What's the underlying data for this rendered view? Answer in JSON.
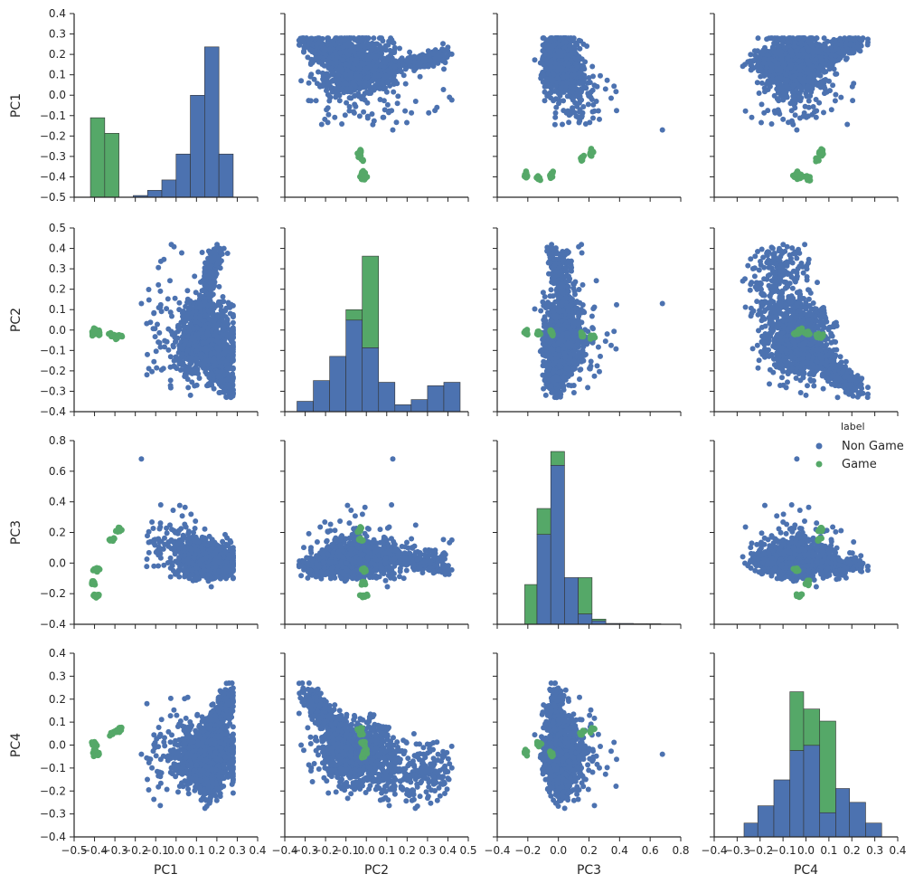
{
  "chart_data": {
    "type": "scatter",
    "kind": "pairplot",
    "variables": [
      "PC1",
      "PC2",
      "PC3",
      "PC4"
    ],
    "hue": "label",
    "legend": {
      "title": "label",
      "placement": "right",
      "entries": [
        {
          "name": "Non Game",
          "color": "#4c72b0"
        },
        {
          "name": "Game",
          "color": "#55a868"
        }
      ]
    },
    "axes": {
      "PC1": {
        "label": "PC1",
        "lim": [
          -0.5,
          0.4
        ],
        "ticks": [
          -0.5,
          -0.4,
          -0.3,
          -0.2,
          -0.1,
          0.0,
          0.1,
          0.2,
          0.3,
          0.4
        ],
        "tick_labels": [
          "−0.5",
          "−0.4",
          "−0.3",
          "−0.2",
          "−0.1",
          "0.0",
          "0.1",
          "0.2",
          "0.3",
          "0.4"
        ],
        "row_tick_labels": [
          "−0.5",
          "−0.4",
          "−0.3",
          "−0.2",
          "−0.1",
          "0.0",
          "0.1",
          "0.2",
          "0.3",
          "0.4"
        ]
      },
      "PC2": {
        "label": "PC2",
        "lim": [
          -0.4,
          0.5
        ],
        "ticks": [
          -0.4,
          -0.3,
          -0.2,
          -0.1,
          0.0,
          0.1,
          0.2,
          0.3,
          0.4,
          0.5
        ],
        "tick_labels": [
          "−0.4",
          "−0.3",
          "−0.2",
          "−0.1",
          "0.0",
          "0.1",
          "0.2",
          "0.3",
          "0.4",
          "0.5"
        ]
      },
      "PC3": {
        "label": "PC3",
        "lim": [
          -0.4,
          0.8
        ],
        "ticks": [
          -0.4,
          -0.2,
          0.0,
          0.2,
          0.4,
          0.6,
          0.8
        ],
        "tick_labels": [
          "−0.4",
          "−0.2",
          "0.0",
          "0.2",
          "0.4",
          "0.6",
          "0.8"
        ]
      },
      "PC4": {
        "label": "PC4",
        "lim": [
          -0.4,
          0.4
        ],
        "ticks": [
          -0.4,
          -0.3,
          -0.2,
          -0.1,
          0.0,
          0.1,
          0.2,
          0.3,
          0.4
        ],
        "tick_labels": [
          "−0.4",
          "−0.3",
          "−0.2",
          "−0.1",
          "0.0",
          "0.1",
          "0.2",
          "0.3",
          "0.4"
        ]
      }
    },
    "histograms": {
      "PC1": {
        "bins": [
          {
            "x0": -0.42,
            "x1": -0.35,
            "non_game": 0,
            "game": 0.46
          },
          {
            "x0": -0.35,
            "x1": -0.28,
            "non_game": 0,
            "game": 0.37
          },
          {
            "x0": -0.21,
            "x1": -0.14,
            "non_game": 0.01,
            "game": 0
          },
          {
            "x0": -0.14,
            "x1": -0.07,
            "non_game": 0.04,
            "game": 0
          },
          {
            "x0": -0.07,
            "x1": 0.0,
            "non_game": 0.1,
            "game": 0
          },
          {
            "x0": 0.0,
            "x1": 0.07,
            "non_game": 0.25,
            "game": 0
          },
          {
            "x0": 0.07,
            "x1": 0.14,
            "non_game": 0.59,
            "game": 0
          },
          {
            "x0": 0.14,
            "x1": 0.21,
            "non_game": 0.87,
            "game": 0
          },
          {
            "x0": 0.21,
            "x1": 0.28,
            "non_game": 0.25,
            "game": 0
          }
        ]
      },
      "PC2": {
        "bins": [
          {
            "x0": -0.34,
            "x1": -0.26,
            "non_game": 0.06,
            "game": 0
          },
          {
            "x0": -0.26,
            "x1": -0.18,
            "non_game": 0.18,
            "game": 0
          },
          {
            "x0": -0.18,
            "x1": -0.1,
            "non_game": 0.32,
            "game": 0
          },
          {
            "x0": -0.1,
            "x1": -0.02,
            "non_game": 0.53,
            "game": 0.06
          },
          {
            "x0": -0.02,
            "x1": 0.06,
            "non_game": 0.37,
            "game": 0.53
          },
          {
            "x0": 0.06,
            "x1": 0.14,
            "non_game": 0.17,
            "game": 0
          },
          {
            "x0": 0.14,
            "x1": 0.22,
            "non_game": 0.04,
            "game": 0
          },
          {
            "x0": 0.22,
            "x1": 0.3,
            "non_game": 0.07,
            "game": 0
          },
          {
            "x0": 0.3,
            "x1": 0.38,
            "non_game": 0.15,
            "game": 0
          },
          {
            "x0": 0.38,
            "x1": 0.46,
            "non_game": 0.17,
            "game": 0
          }
        ]
      },
      "PC3": {
        "bins": [
          {
            "x0": -0.22,
            "x1": -0.14,
            "non_game": 0,
            "game": 0.23
          },
          {
            "x0": -0.14,
            "x1": -0.05,
            "non_game": 0.52,
            "game": 0.15
          },
          {
            "x0": -0.05,
            "x1": 0.04,
            "non_game": 0.92,
            "game": 0.08
          },
          {
            "x0": 0.04,
            "x1": 0.13,
            "non_game": 0.27,
            "game": 0
          },
          {
            "x0": 0.13,
            "x1": 0.22,
            "non_game": 0.06,
            "game": 0.21
          },
          {
            "x0": 0.22,
            "x1": 0.31,
            "non_game": 0.02,
            "game": 0.01
          },
          {
            "x0": 0.31,
            "x1": 0.4,
            "non_game": 0.005,
            "game": 0
          },
          {
            "x0": 0.4,
            "x1": 0.49,
            "non_game": 0.005,
            "game": 0
          },
          {
            "x0": 0.49,
            "x1": 0.58,
            "non_game": 0.003,
            "game": 0
          },
          {
            "x0": 0.58,
            "x1": 0.67,
            "non_game": 0.003,
            "game": 0
          }
        ]
      },
      "PC4": {
        "bins": [
          {
            "x0": -0.27,
            "x1": -0.21,
            "non_game": 0.08,
            "game": 0
          },
          {
            "x0": -0.21,
            "x1": -0.14,
            "non_game": 0.18,
            "game": 0
          },
          {
            "x0": -0.14,
            "x1": -0.07,
            "non_game": 0.33,
            "game": 0
          },
          {
            "x0": -0.07,
            "x1": -0.01,
            "non_game": 0.5,
            "game": 0.34
          },
          {
            "x0": -0.01,
            "x1": 0.06,
            "non_game": 0.53,
            "game": 0.21
          },
          {
            "x0": 0.06,
            "x1": 0.13,
            "non_game": 0.14,
            "game": 0.53
          },
          {
            "x0": 0.13,
            "x1": 0.19,
            "non_game": 0.28,
            "game": 0
          },
          {
            "x0": 0.19,
            "x1": 0.26,
            "non_game": 0.2,
            "game": 0
          },
          {
            "x0": 0.26,
            "x1": 0.33,
            "non_game": 0.08,
            "game": 0
          }
        ]
      }
    },
    "game_points": [
      {
        "PC1": -0.4,
        "PC2": -0.02,
        "PC3": -0.04,
        "PC4": -0.05
      },
      {
        "PC1": -0.39,
        "PC2": -0.01,
        "PC3": -0.05,
        "PC4": -0.04
      },
      {
        "PC1": -0.4,
        "PC2": 0.0,
        "PC3": -0.05,
        "PC4": -0.03
      },
      {
        "PC1": -0.38,
        "PC2": -0.01,
        "PC3": -0.04,
        "PC4": -0.04
      },
      {
        "PC1": -0.41,
        "PC2": -0.01,
        "PC3": -0.13,
        "PC4": 0.01
      },
      {
        "PC1": -0.4,
        "PC2": -0.02,
        "PC3": -0.14,
        "PC4": 0.01
      },
      {
        "PC1": -0.4,
        "PC2": -0.01,
        "PC3": -0.13,
        "PC4": 0.0
      },
      {
        "PC1": -0.41,
        "PC2": -0.02,
        "PC3": -0.12,
        "PC4": 0.01
      },
      {
        "PC1": -0.4,
        "PC2": -0.01,
        "PC3": -0.21,
        "PC4": -0.03
      },
      {
        "PC1": -0.39,
        "PC2": -0.01,
        "PC3": -0.22,
        "PC4": -0.03
      },
      {
        "PC1": -0.4,
        "PC2": 0.0,
        "PC3": -0.21,
        "PC4": -0.02
      },
      {
        "PC1": -0.38,
        "PC2": -0.02,
        "PC3": -0.21,
        "PC4": -0.04
      },
      {
        "PC1": -0.31,
        "PC2": -0.03,
        "PC3": 0.15,
        "PC4": 0.05
      },
      {
        "PC1": -0.3,
        "PC2": -0.03,
        "PC3": 0.16,
        "PC4": 0.06
      },
      {
        "PC1": -0.32,
        "PC2": -0.02,
        "PC3": 0.15,
        "PC4": 0.05
      },
      {
        "PC1": -0.28,
        "PC2": -0.03,
        "PC3": 0.21,
        "PC4": 0.06
      },
      {
        "PC1": -0.27,
        "PC2": -0.03,
        "PC3": 0.22,
        "PC4": 0.07
      },
      {
        "PC1": -0.29,
        "PC2": -0.04,
        "PC3": 0.21,
        "PC4": 0.06
      },
      {
        "PC1": -0.28,
        "PC2": -0.03,
        "PC3": 0.23,
        "PC4": 0.07
      }
    ]
  }
}
